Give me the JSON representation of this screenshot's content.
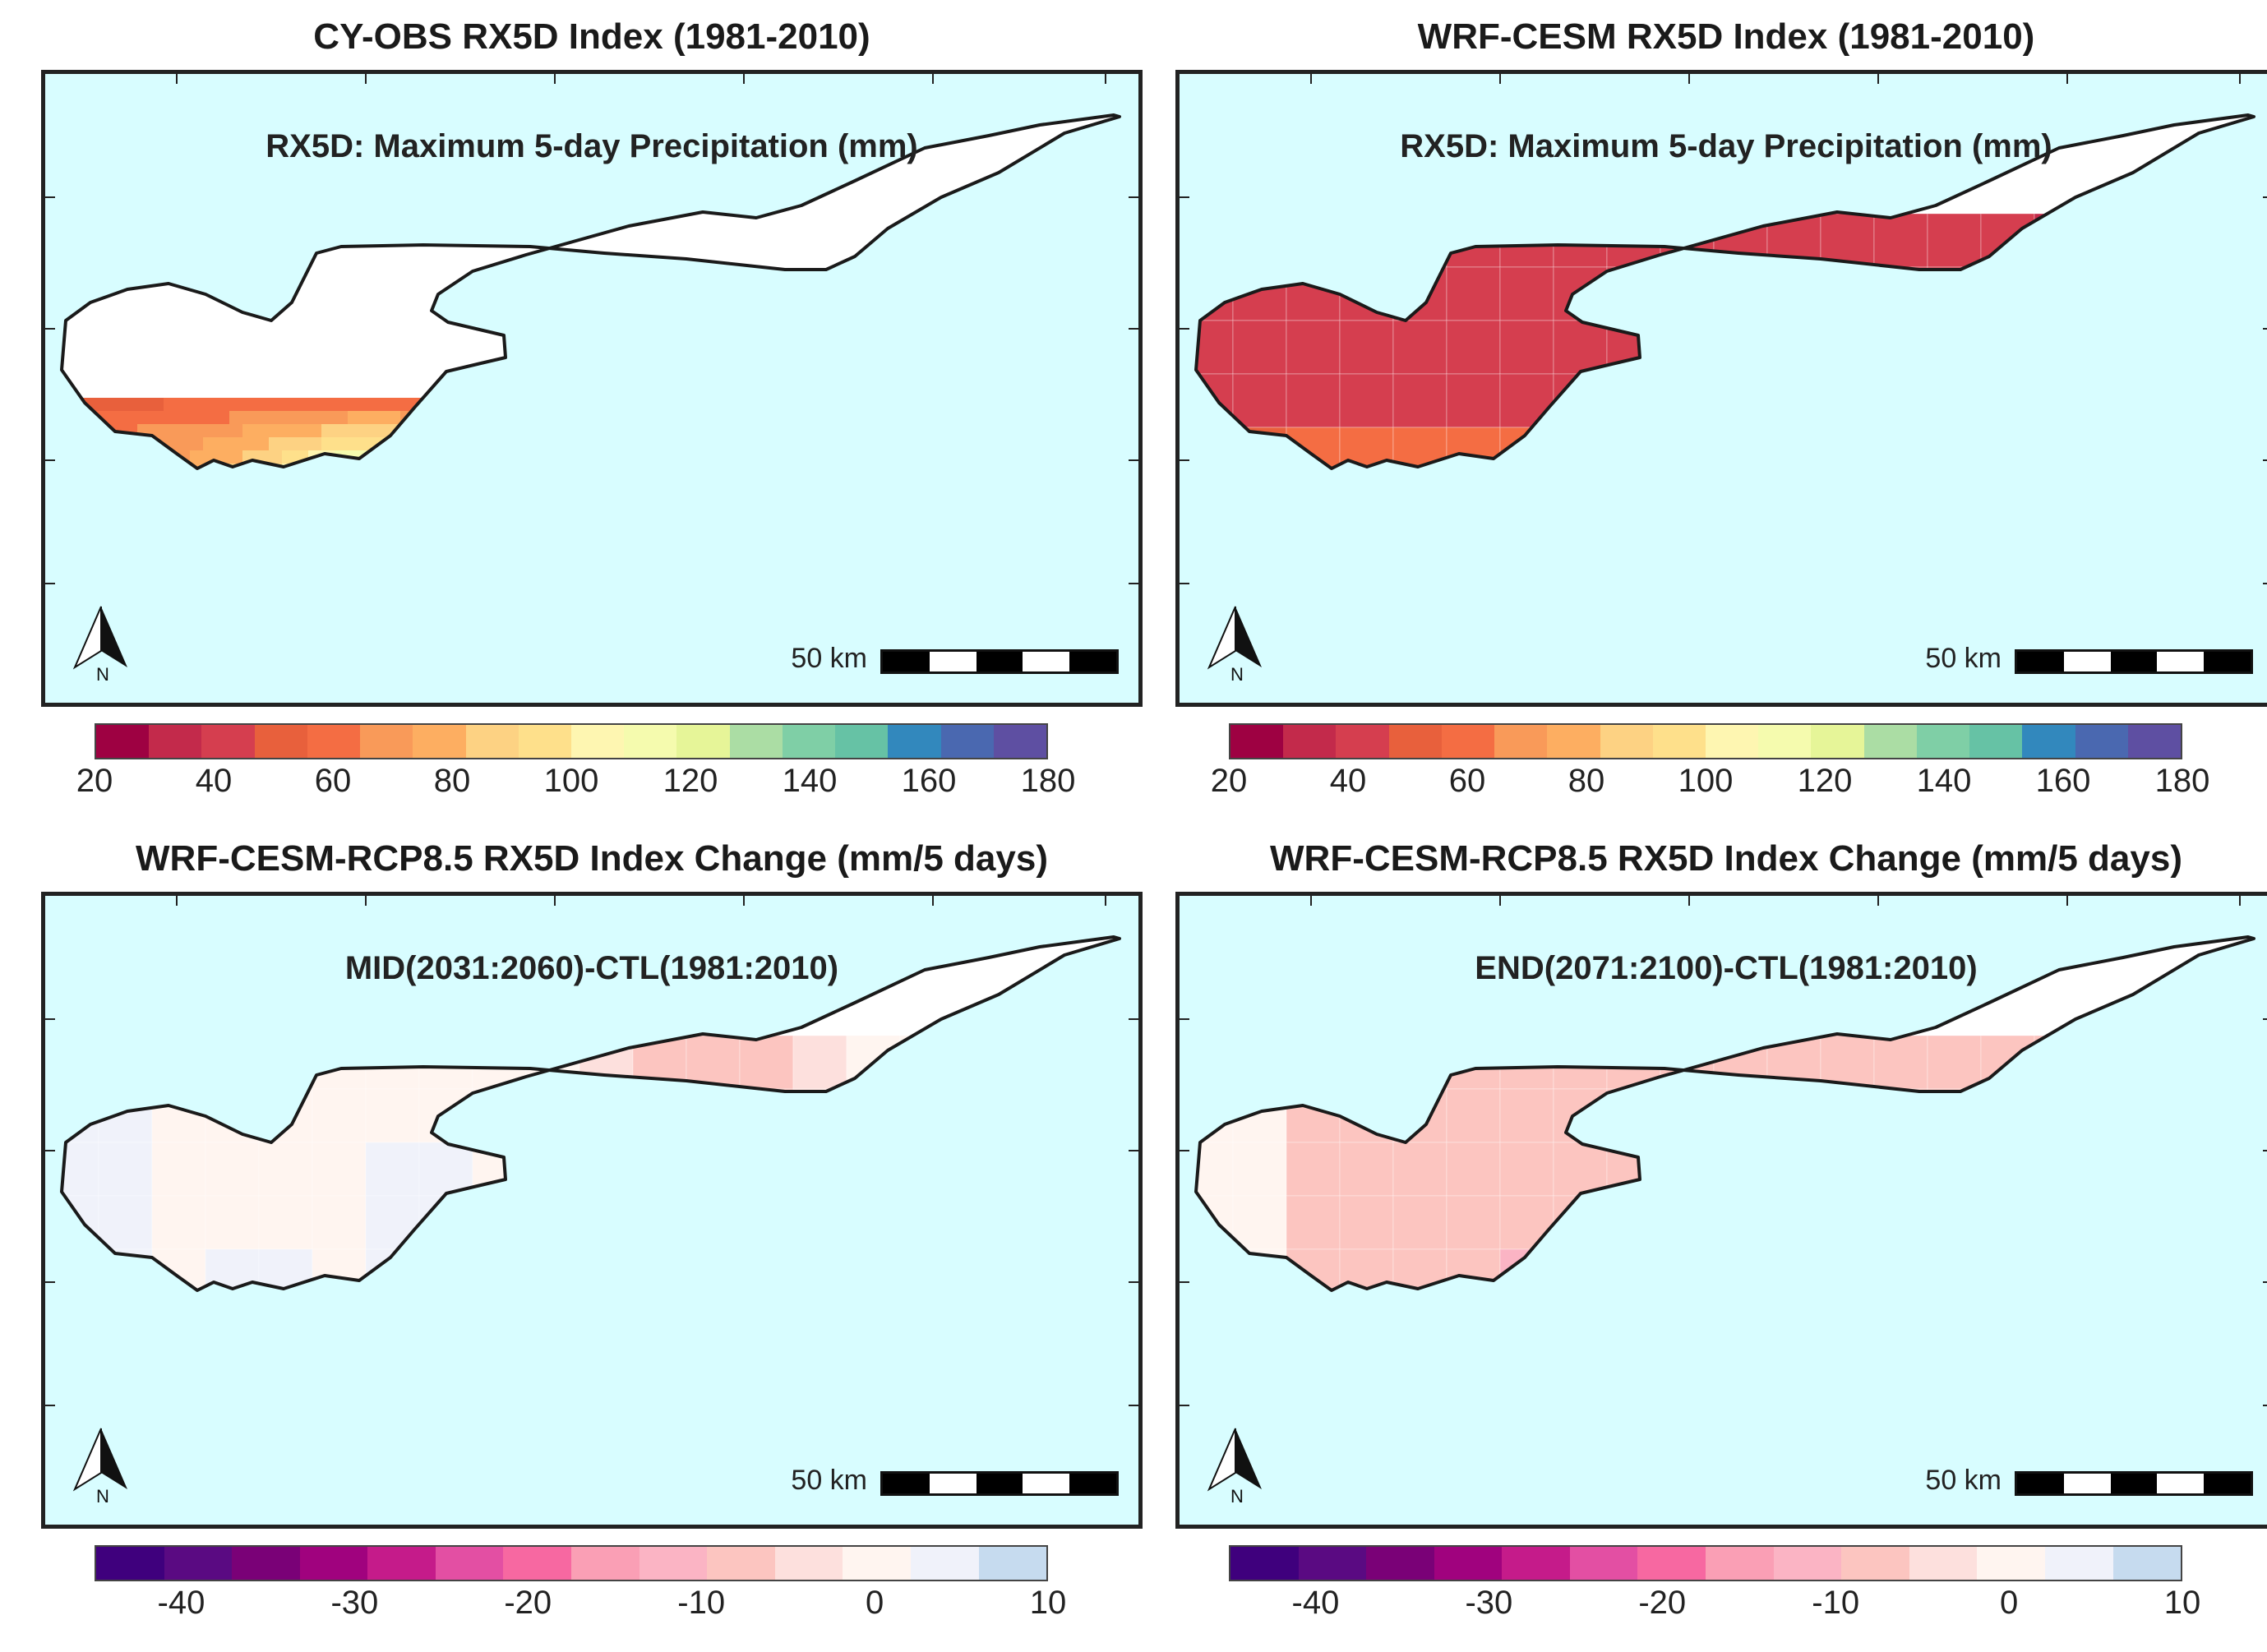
{
  "panels": [
    {
      "title": "CY-OBS RX5D Index (1981-2010)",
      "subtitle": "RX5D: Maximum 5-day Precipitation (mm)",
      "scale_label": "50 km",
      "north_label": "N",
      "field": "obs"
    },
    {
      "title": "WRF-CESM RX5D Index (1981-2010)",
      "subtitle": "RX5D: Maximum 5-day Precipitation (mm)",
      "scale_label": "50 km",
      "north_label": "N",
      "field": "wrf"
    },
    {
      "title": "WRF-CESM-RCP8.5 RX5D Index Change (mm/5 days)",
      "subtitle": "MID(2031:2060)-CTL(1981:2010)",
      "scale_label": "50 km",
      "north_label": "N",
      "field": "mid"
    },
    {
      "title": "WRF-CESM-RCP8.5 RX5D Index Change (mm/5 days)",
      "subtitle": "END(2071:2100)-CTL(1981:2010)",
      "scale_label": "50 km",
      "north_label": "N",
      "field": "end"
    }
  ],
  "colorbars": {
    "precip": {
      "min": 20,
      "max": 180,
      "tick_labels": [
        "20",
        "40",
        "60",
        "80",
        "100",
        "120",
        "140",
        "160",
        "180"
      ],
      "colors": [
        "#9e0142",
        "#c32a4b",
        "#d53e4f",
        "#e8603c",
        "#f46d43",
        "#f99a59",
        "#fdae61",
        "#fdd283",
        "#fee08b",
        "#fef6b1",
        "#f5fbae",
        "#e6f598",
        "#abdda4",
        "#7fcfa6",
        "#66c2a5",
        "#3288bd",
        "#4a68b0",
        "#5e4fa2"
      ]
    },
    "change": {
      "min": -45,
      "max": 10,
      "tick_labels": [
        "-40",
        "-30",
        "-20",
        "-10",
        "0",
        "10"
      ],
      "tick_values": [
        -40,
        -30,
        -20,
        -10,
        0,
        10
      ],
      "colors": [
        "#3f007d",
        "#5a0a82",
        "#7a0177",
        "#a0027e",
        "#c51b8a",
        "#e34fa3",
        "#f768a1",
        "#fa9fb5",
        "#fbb4c4",
        "#fcc5c0",
        "#fde0dd",
        "#fff5f0",
        "#f0f2fa",
        "#c6dbef"
      ]
    }
  },
  "colors": {
    "sea": "#d8fdff",
    "land_no_data": "#ffffff",
    "coast": "#1a1a1a"
  }
}
